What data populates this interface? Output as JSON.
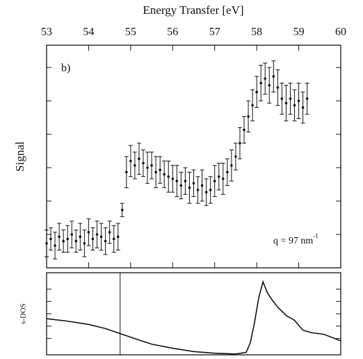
{
  "chart_data": [
    {
      "type": "errorbar",
      "title": "Energy Transfer [eV]",
      "ylabel": "Signal",
      "annotation": "b)",
      "note": {
        "text": "q = 97 nm",
        "superscript": "-1"
      },
      "xlim": [
        53,
        60
      ],
      "xticks": [
        53,
        54,
        55,
        56,
        57,
        58,
        59,
        60
      ],
      "ylim": [
        0,
        10
      ],
      "yticks": [
        1.5,
        3,
        4.5,
        6,
        7.5,
        9
      ],
      "color": "#111111",
      "x": [
        53.0,
        53.1,
        53.2,
        53.3,
        53.4,
        53.5,
        53.6,
        53.7,
        53.8,
        53.9,
        54.0,
        54.1,
        54.2,
        54.3,
        54.4,
        54.5,
        54.6,
        54.7,
        54.8,
        54.9,
        55.0,
        55.1,
        55.2,
        55.3,
        55.4,
        55.5,
        55.6,
        55.7,
        55.8,
        55.9,
        56.0,
        56.1,
        56.2,
        56.3,
        56.4,
        56.5,
        56.6,
        56.7,
        56.8,
        56.9,
        57.0,
        57.1,
        57.2,
        57.3,
        57.4,
        57.5,
        57.6,
        57.7,
        57.8,
        57.9,
        58.0,
        58.1,
        58.2,
        58.3,
        58.4,
        58.5,
        58.6,
        58.7,
        58.8,
        58.9,
        59.0,
        59.1,
        59.2
      ],
      "values": [
        1.1,
        1.3,
        1.0,
        1.4,
        1.2,
        1.3,
        1.5,
        1.2,
        1.4,
        1.1,
        1.6,
        1.3,
        1.5,
        1.4,
        1.2,
        1.6,
        1.3,
        1.4,
        2.6,
        4.3,
        4.8,
        4.6,
        4.9,
        4.7,
        4.5,
        4.6,
        4.3,
        4.4,
        4.2,
        4.1,
        4.0,
        3.9,
        3.7,
        3.9,
        3.6,
        3.8,
        3.5,
        3.7,
        3.4,
        3.5,
        3.9,
        4.1,
        4.0,
        4.3,
        4.6,
        5.0,
        5.6,
        6.2,
        6.8,
        7.3,
        7.9,
        8.3,
        8.5,
        8.2,
        8.6,
        8.1,
        7.6,
        7.4,
        7.6,
        7.3,
        7.5,
        7.2,
        7.6
      ],
      "errors": [
        0.6,
        0.5,
        0.6,
        0.6,
        0.5,
        0.6,
        0.6,
        0.5,
        0.6,
        0.6,
        0.6,
        0.5,
        0.6,
        0.6,
        0.6,
        0.5,
        0.6,
        0.6,
        0.3,
        0.7,
        0.7,
        0.6,
        0.7,
        0.6,
        0.7,
        0.6,
        0.7,
        0.6,
        0.6,
        0.7,
        0.6,
        0.7,
        0.6,
        0.6,
        0.7,
        0.6,
        0.6,
        0.7,
        0.6,
        0.6,
        0.7,
        0.6,
        0.7,
        0.6,
        0.7,
        0.6,
        0.7,
        0.6,
        0.7,
        0.7,
        0.7,
        0.8,
        0.7,
        0.8,
        0.7,
        0.8,
        0.7,
        0.8,
        0.7,
        0.7,
        0.8,
        0.7,
        0.7
      ]
    },
    {
      "type": "line",
      "ylabel": "s-DOS",
      "xlim": [
        53,
        60
      ],
      "ylim": [
        0,
        1
      ],
      "yticks": [
        0.2,
        0.35,
        0.5,
        0.65,
        0.8
      ],
      "color": "#111111",
      "vline": 54.75,
      "x": [
        53.0,
        53.5,
        54.0,
        54.4,
        54.8,
        55.2,
        55.5,
        56.0,
        56.5,
        57.0,
        57.5,
        57.75,
        57.85,
        57.95,
        58.05,
        58.15,
        58.25,
        58.35,
        58.5,
        58.7,
        58.9,
        59.1,
        59.3,
        59.6,
        60.0
      ],
      "values": [
        0.44,
        0.41,
        0.37,
        0.32,
        0.25,
        0.18,
        0.13,
        0.08,
        0.04,
        0.02,
        0.01,
        0.03,
        0.15,
        0.4,
        0.7,
        0.89,
        0.76,
        0.68,
        0.58,
        0.48,
        0.42,
        0.3,
        0.27,
        0.25,
        0.17
      ]
    }
  ]
}
